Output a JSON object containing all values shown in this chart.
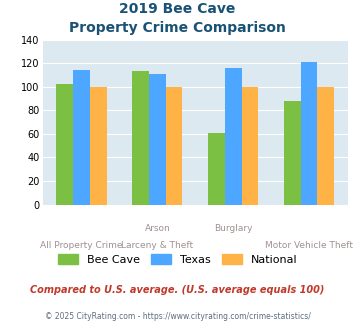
{
  "title_line1": "2019 Bee Cave",
  "title_line2": "Property Crime Comparison",
  "groups": [
    {
      "label": "All Property Crime",
      "bee_cave": 102,
      "texas": 114,
      "national": 100
    },
    {
      "label": "Arson / Larceny & Theft",
      "bee_cave": 113,
      "texas": 111,
      "national": 100
    },
    {
      "label": "Burglary",
      "bee_cave": 61,
      "texas": 116,
      "national": 100
    },
    {
      "label": "Motor Vehicle Theft",
      "bee_cave": 88,
      "texas": 121,
      "national": 100
    }
  ],
  "bar_colors": {
    "bee_cave": "#7bc043",
    "texas": "#4da6ff",
    "national": "#ffb347"
  },
  "ylim": [
    0,
    140
  ],
  "yticks": [
    0,
    20,
    40,
    60,
    80,
    100,
    120,
    140
  ],
  "plot_bg_color": "#dce9f0",
  "footer_text1": "Compared to U.S. average. (U.S. average equals 100)",
  "footer_text2": "© 2025 CityRating.com - https://www.cityrating.com/crime-statistics/",
  "title_color": "#1a5276",
  "footer1_color": "#c0392b",
  "footer2_color": "#5d6d7e",
  "xlabel_color": "#a09090",
  "bar_width": 0.22,
  "group_positions": [
    0,
    1,
    2,
    3
  ],
  "top_xlabels": [
    [
      "Arson",
      1
    ],
    [
      "Burglary",
      2
    ]
  ],
  "bottom_xlabels": [
    [
      "All Property Crime",
      0
    ],
    [
      "Larceny & Theft",
      1
    ],
    [
      "Motor Vehicle Theft",
      3
    ]
  ]
}
